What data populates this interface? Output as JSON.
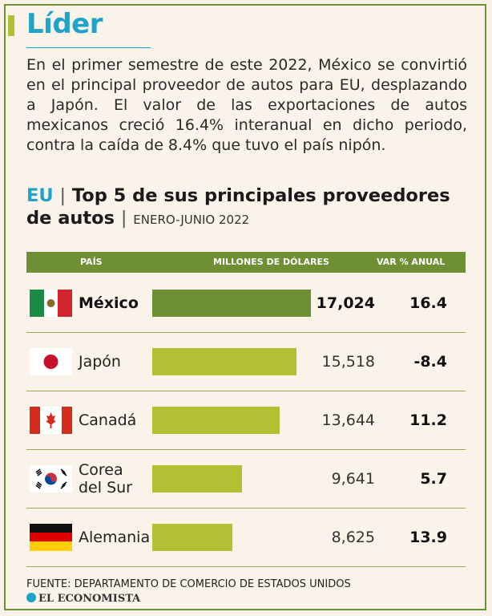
{
  "header": {
    "title": "Líder"
  },
  "intro": "En el primer semestre de este 2022, México se convirtió en el principal proveedor de autos para EU, desplazando a Japón. El valor de las exportaciones de autos mexicanos creció 16.4% interanual en dicho periodo, contra la caída de 8.4% que tuvo el país nipón.",
  "chart_title": {
    "prefix": "EU",
    "sep": "|",
    "main": "Top 5 de sus principales proveedores de autos",
    "sep2": "|",
    "period": "ENERO-JUNIO 2022"
  },
  "chart_data": {
    "type": "bar",
    "title": "Top 5 de sus principales proveedores de autos",
    "subtitle": "ENERO-JUNIO 2022",
    "columns": {
      "country": "PAÍS",
      "value": "MILLONES DE DÓLARES",
      "var": "VAR % ANUAL"
    },
    "categories": [
      "México",
      "Japón",
      "Canadá",
      "Corea del Sur",
      "Alemania"
    ],
    "category_lines": [
      [
        "México"
      ],
      [
        "Japón"
      ],
      [
        "Canadá"
      ],
      [
        "Corea",
        "del Sur"
      ],
      [
        "Alemania"
      ]
    ],
    "values": [
      17024,
      15518,
      13644,
      9641,
      8625
    ],
    "value_labels": [
      "17,024",
      "15,518",
      "13,644",
      "9,641",
      "8,625"
    ],
    "var_pct": [
      16.4,
      -8.4,
      11.2,
      5.7,
      13.9
    ],
    "var_labels": [
      "16.4",
      "-8.4",
      "11.2",
      "5.7",
      "13.9"
    ],
    "flag_icons": [
      "mexico-flag-icon",
      "japan-flag-icon",
      "canada-flag-icon",
      "south-korea-flag-icon",
      "germany-flag-icon"
    ],
    "bar_colors": [
      "#6f8f35",
      "#b4bf34",
      "#b4bf34",
      "#b4bf34",
      "#b4bf34"
    ],
    "highlight": "México",
    "xlim": [
      0,
      17024
    ]
  },
  "footer": {
    "source": "FUENTE: DEPARTAMENTO DE COMERCIO DE ESTADOS UNIDOS",
    "brand": "EL ECONOMISTA"
  }
}
